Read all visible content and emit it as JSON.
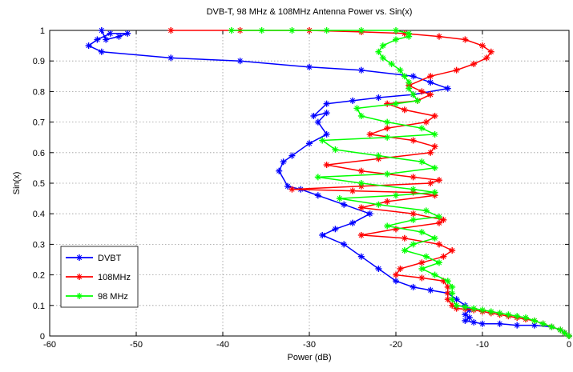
{
  "chart_data": {
    "type": "line",
    "title": "DVB-T, 98 MHz & 108MHz Antenna Power vs. Sin(x)",
    "xlabel": "Power (dB)",
    "ylabel": "Sin(x)",
    "xlim": [
      -60,
      0
    ],
    "ylim": [
      0,
      1
    ],
    "xticks": [
      -60,
      -50,
      -40,
      -30,
      -20,
      -10,
      0
    ],
    "yticks": [
      0,
      0.1,
      0.2,
      0.3,
      0.4,
      0.5,
      0.6,
      0.7,
      0.8,
      0.9,
      1
    ],
    "grid": true,
    "legend_position": "bottom-left",
    "series": [
      {
        "name": "DVBT",
        "color": "#0000ff",
        "points": [
          [
            0,
            0.0
          ],
          [
            -0.5,
            0.01
          ],
          [
            -1,
            0.02
          ],
          [
            -2,
            0.03
          ],
          [
            -4,
            0.035
          ],
          [
            -6,
            0.035
          ],
          [
            -8,
            0.04
          ],
          [
            -10,
            0.04
          ],
          [
            -11,
            0.045
          ],
          [
            -12,
            0.05
          ],
          [
            -11.5,
            0.06
          ],
          [
            -12,
            0.07
          ],
          [
            -11.5,
            0.085
          ],
          [
            -12,
            0.1
          ],
          [
            -13,
            0.12
          ],
          [
            -14,
            0.14
          ],
          [
            -16,
            0.15
          ],
          [
            -18,
            0.16
          ],
          [
            -20,
            0.18
          ],
          [
            -22,
            0.22
          ],
          [
            -24,
            0.26
          ],
          [
            -26,
            0.3
          ],
          [
            -28.5,
            0.33
          ],
          [
            -27,
            0.35
          ],
          [
            -25,
            0.37
          ],
          [
            -23,
            0.4
          ],
          [
            -26,
            0.43
          ],
          [
            -29,
            0.46
          ],
          [
            -31,
            0.48
          ],
          [
            -32.5,
            0.49
          ],
          [
            -33.5,
            0.54
          ],
          [
            -33,
            0.57
          ],
          [
            -32,
            0.59
          ],
          [
            -30,
            0.63
          ],
          [
            -28,
            0.66
          ],
          [
            -29,
            0.7
          ],
          [
            -28,
            0.73
          ],
          [
            -29.5,
            0.72
          ],
          [
            -28,
            0.76
          ],
          [
            -25,
            0.77
          ],
          [
            -22,
            0.78
          ],
          [
            -18,
            0.79
          ],
          [
            -14,
            0.81
          ],
          [
            -16,
            0.83
          ],
          [
            -18,
            0.85
          ],
          [
            -24,
            0.87
          ],
          [
            -30,
            0.88
          ],
          [
            -38,
            0.9
          ],
          [
            -46,
            0.91
          ],
          [
            -54,
            0.93
          ],
          [
            -55.5,
            0.95
          ],
          [
            -54.5,
            0.97
          ],
          [
            -53,
            0.99
          ],
          [
            -51,
            0.99
          ],
          [
            -52,
            0.98
          ],
          [
            -53.5,
            0.97
          ],
          [
            -54,
            1.0
          ]
        ]
      },
      {
        "name": "108MHz",
        "color": "#ff0000",
        "points": [
          [
            0,
            0.0
          ],
          [
            -0.5,
            0.01
          ],
          [
            -1,
            0.02
          ],
          [
            -2,
            0.03
          ],
          [
            -3,
            0.04
          ],
          [
            -4,
            0.05
          ],
          [
            -5,
            0.055
          ],
          [
            -6,
            0.06
          ],
          [
            -7,
            0.065
          ],
          [
            -8,
            0.07
          ],
          [
            -9,
            0.075
          ],
          [
            -10,
            0.08
          ],
          [
            -11,
            0.085
          ],
          [
            -12,
            0.088
          ],
          [
            -13,
            0.09
          ],
          [
            -13.5,
            0.1
          ],
          [
            -14,
            0.12
          ],
          [
            -14,
            0.14
          ],
          [
            -14,
            0.16
          ],
          [
            -14.5,
            0.18
          ],
          [
            -17,
            0.19
          ],
          [
            -20,
            0.2
          ],
          [
            -19.5,
            0.22
          ],
          [
            -17,
            0.24
          ],
          [
            -14.5,
            0.26
          ],
          [
            -13.5,
            0.28
          ],
          [
            -15,
            0.3
          ],
          [
            -19,
            0.32
          ],
          [
            -24,
            0.33
          ],
          [
            -20,
            0.35
          ],
          [
            -15,
            0.37
          ],
          [
            -14.5,
            0.38
          ],
          [
            -18,
            0.4
          ],
          [
            -24,
            0.42
          ],
          [
            -21,
            0.44
          ],
          [
            -15.5,
            0.46
          ],
          [
            -18,
            0.47
          ],
          [
            -25,
            0.475
          ],
          [
            -32,
            0.48
          ],
          [
            -24,
            0.49
          ],
          [
            -16,
            0.5
          ],
          [
            -15,
            0.51
          ],
          [
            -18,
            0.52
          ],
          [
            -24,
            0.54
          ],
          [
            -28,
            0.56
          ],
          [
            -22,
            0.58
          ],
          [
            -16,
            0.6
          ],
          [
            -15.5,
            0.62
          ],
          [
            -18,
            0.64
          ],
          [
            -23,
            0.66
          ],
          [
            -21,
            0.68
          ],
          [
            -16.5,
            0.7
          ],
          [
            -15.5,
            0.72
          ],
          [
            -19,
            0.74
          ],
          [
            -21,
            0.76
          ],
          [
            -17.5,
            0.77
          ],
          [
            -16,
            0.79
          ],
          [
            -17,
            0.8
          ],
          [
            -18.5,
            0.82
          ],
          [
            -16,
            0.85
          ],
          [
            -13,
            0.87
          ],
          [
            -11,
            0.89
          ],
          [
            -9.5,
            0.91
          ],
          [
            -9,
            0.93
          ],
          [
            -10,
            0.95
          ],
          [
            -12,
            0.97
          ],
          [
            -15,
            0.98
          ],
          [
            -19,
            0.99
          ],
          [
            -24,
            0.995
          ],
          [
            -30,
            1.0
          ],
          [
            -38,
            1.0
          ],
          [
            -46,
            1.0
          ]
        ]
      },
      {
        "name": "98 MHz",
        "color": "#00ff00",
        "points": [
          [
            0,
            0.0
          ],
          [
            -0.5,
            0.01
          ],
          [
            -1,
            0.02
          ],
          [
            -2,
            0.03
          ],
          [
            -3,
            0.04
          ],
          [
            -4,
            0.05
          ],
          [
            -5,
            0.06
          ],
          [
            -6,
            0.065
          ],
          [
            -7,
            0.07
          ],
          [
            -8,
            0.075
          ],
          [
            -9,
            0.08
          ],
          [
            -10,
            0.085
          ],
          [
            -11,
            0.09
          ],
          [
            -12,
            0.095
          ],
          [
            -13,
            0.1
          ],
          [
            -13.5,
            0.12
          ],
          [
            -13.5,
            0.14
          ],
          [
            -13.5,
            0.16
          ],
          [
            -14,
            0.18
          ],
          [
            -15.5,
            0.2
          ],
          [
            -17,
            0.22
          ],
          [
            -15,
            0.24
          ],
          [
            -16.5,
            0.26
          ],
          [
            -19,
            0.28
          ],
          [
            -18,
            0.3
          ],
          [
            -15.5,
            0.32
          ],
          [
            -17,
            0.34
          ],
          [
            -21,
            0.36
          ],
          [
            -18,
            0.38
          ],
          [
            -15,
            0.39
          ],
          [
            -16.5,
            0.41
          ],
          [
            -22,
            0.43
          ],
          [
            -26.5,
            0.45
          ],
          [
            -20,
            0.46
          ],
          [
            -15.5,
            0.47
          ],
          [
            -18,
            0.48
          ],
          [
            -24,
            0.5
          ],
          [
            -29,
            0.52
          ],
          [
            -21,
            0.53
          ],
          [
            -15.5,
            0.55
          ],
          [
            -17,
            0.57
          ],
          [
            -22,
            0.59
          ],
          [
            -27,
            0.61
          ],
          [
            -28.5,
            0.64
          ],
          [
            -21,
            0.65
          ],
          [
            -15.5,
            0.66
          ],
          [
            -17,
            0.68
          ],
          [
            -21,
            0.7
          ],
          [
            -24,
            0.72
          ],
          [
            -24.5,
            0.745
          ],
          [
            -20,
            0.76
          ],
          [
            -17.5,
            0.77
          ],
          [
            -18,
            0.79
          ],
          [
            -18.5,
            0.81
          ],
          [
            -18.5,
            0.83
          ],
          [
            -19,
            0.85
          ],
          [
            -19.5,
            0.87
          ],
          [
            -20.5,
            0.89
          ],
          [
            -21.5,
            0.91
          ],
          [
            -22,
            0.93
          ],
          [
            -21.5,
            0.95
          ],
          [
            -20,
            0.97
          ],
          [
            -18.5,
            0.98
          ],
          [
            -18.5,
            0.99
          ],
          [
            -20,
            1.0
          ],
          [
            -24,
            1.0
          ],
          [
            -28,
            1.0
          ],
          [
            -32,
            1.0
          ],
          [
            -35.5,
            1.0
          ],
          [
            -39,
            1.0
          ]
        ]
      }
    ]
  }
}
